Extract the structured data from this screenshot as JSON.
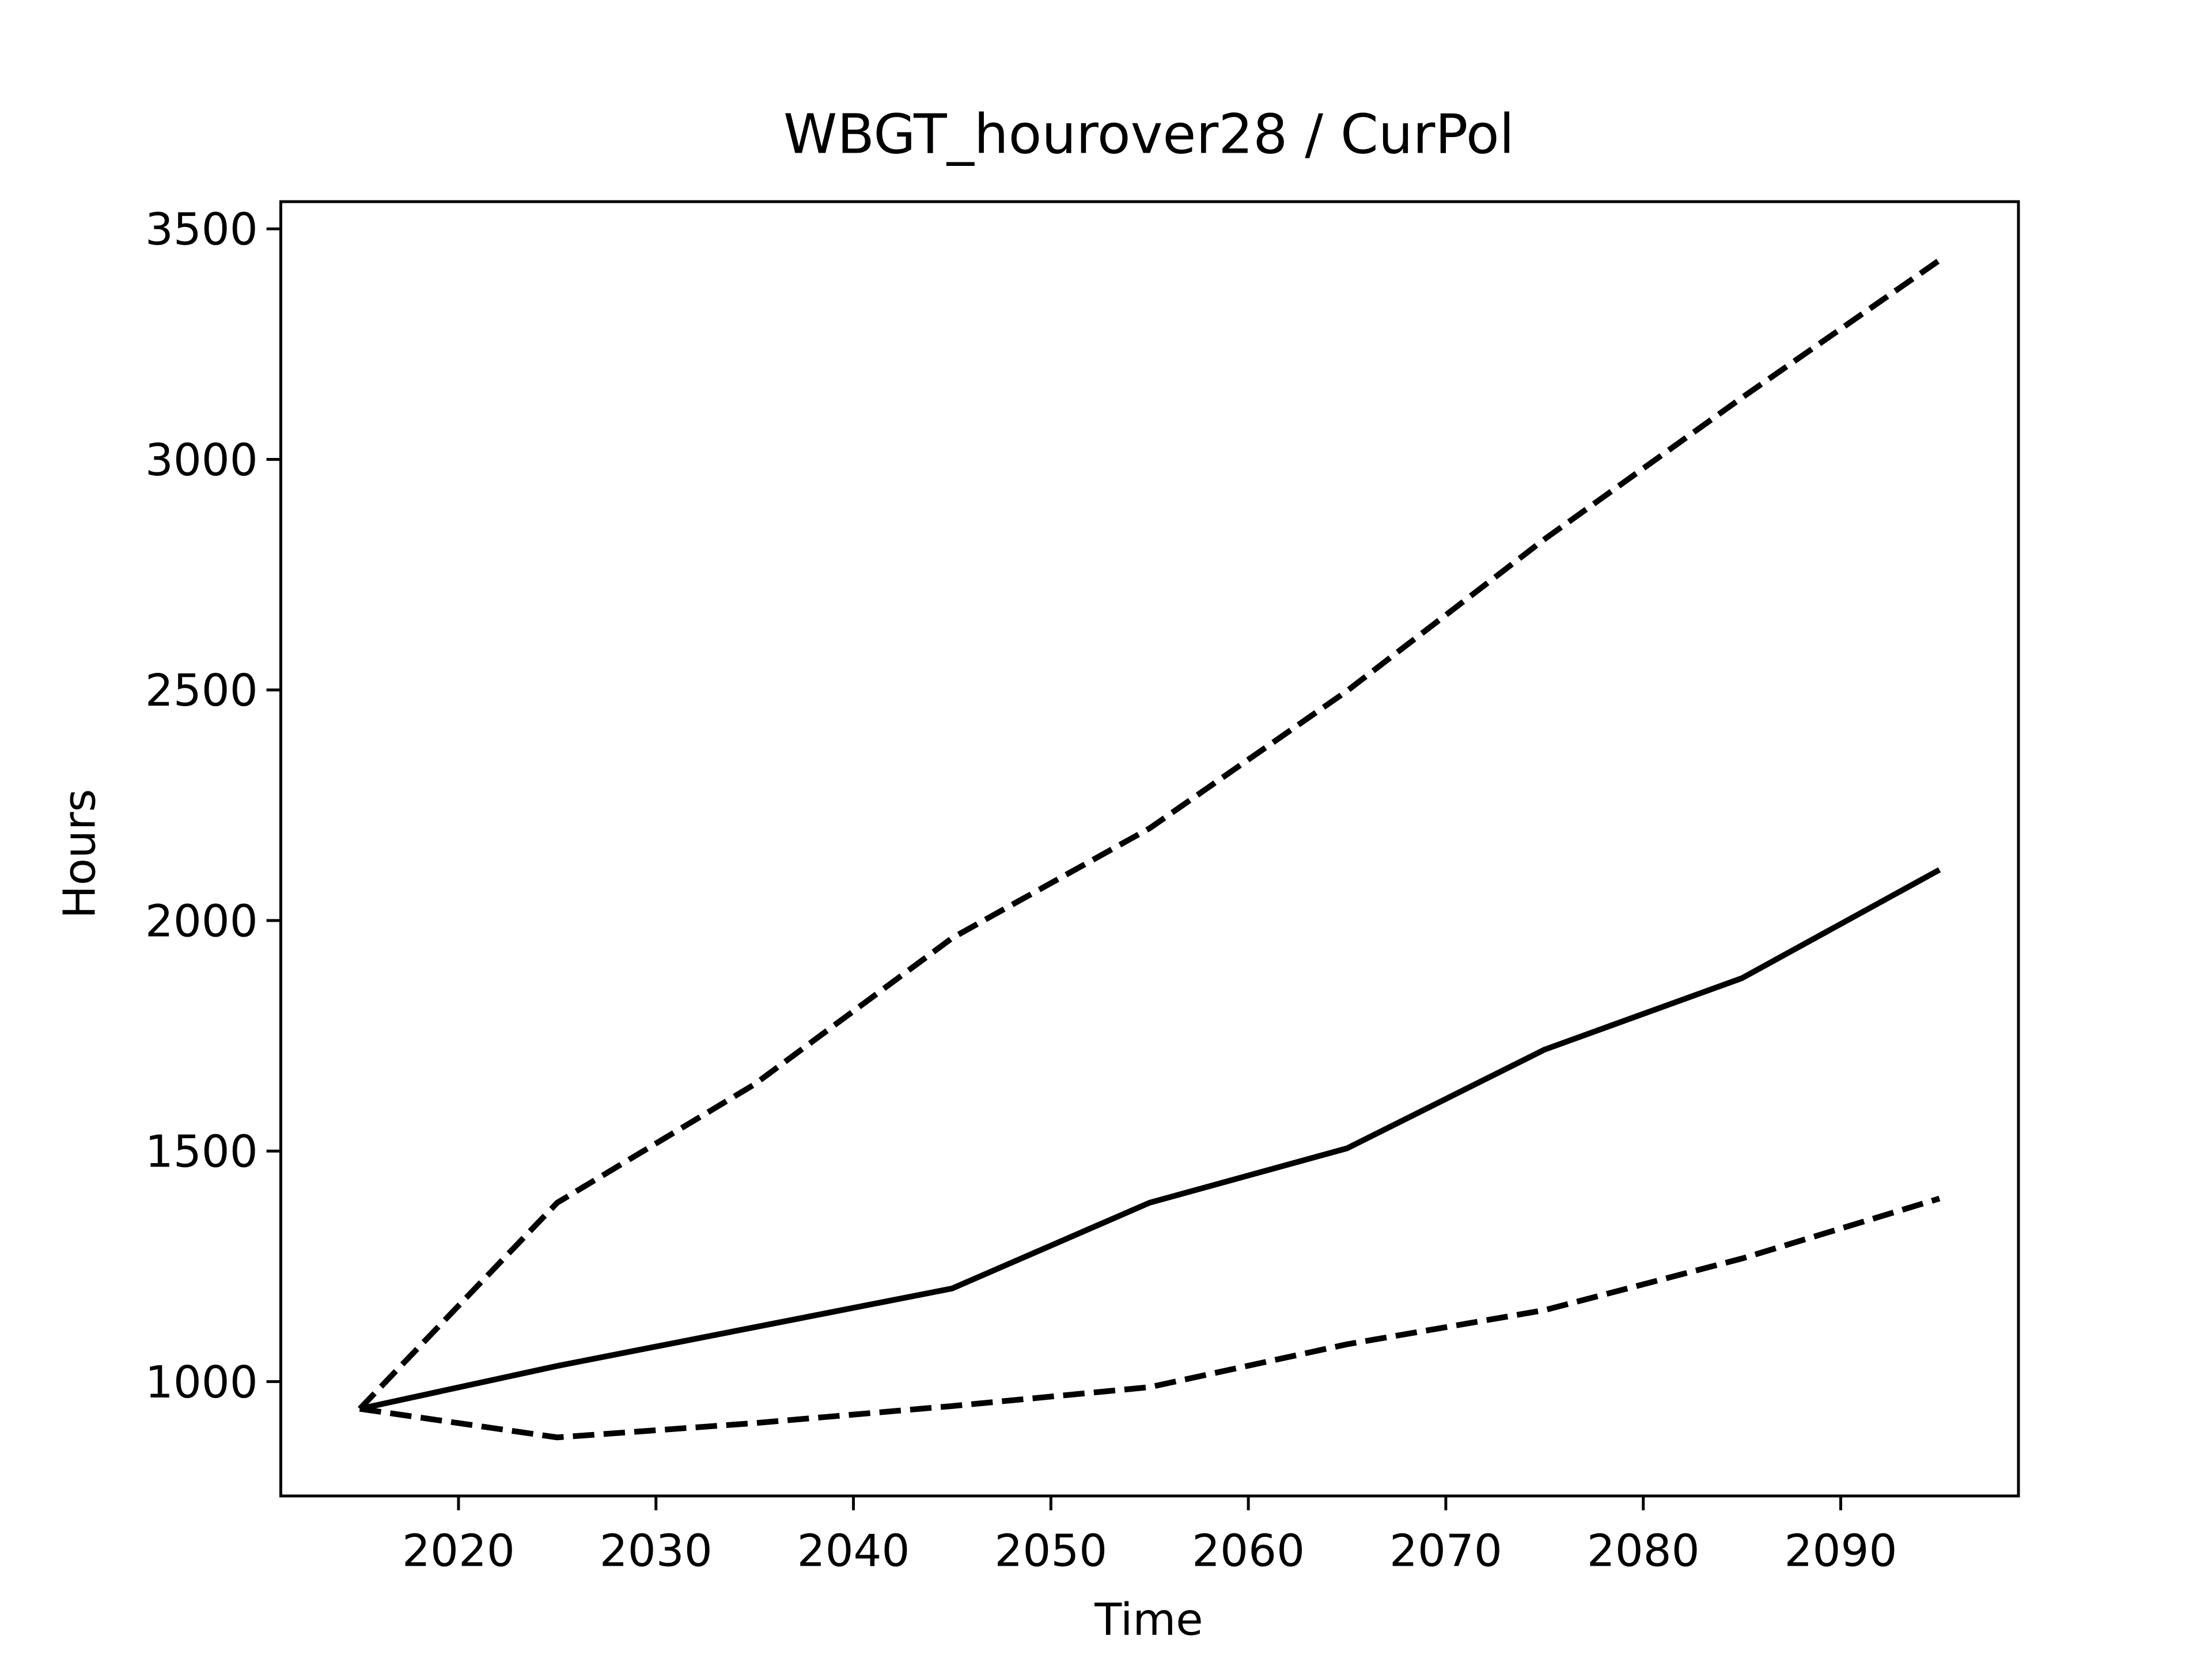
{
  "chart_data": {
    "type": "line",
    "title": "WBGT_hourover28 / CurPol",
    "x_label": "Time",
    "y_label": "Hours",
    "x": [
      2015,
      2025,
      2035,
      2045,
      2055,
      2065,
      2075,
      2085,
      2095
    ],
    "series": [
      {
        "color": "#000000",
        "linestyle": "dashed",
        "values": [
          941,
          879,
          910,
          947,
          988,
          1081,
          1155,
          1267,
          1397
        ]
      },
      {
        "color": "#000000",
        "linestyle": "solid",
        "values": [
          941,
          1034,
          1118,
          1202,
          1388,
          1506,
          1720,
          1875,
          2110
        ]
      },
      {
        "color": "#000000",
        "linestyle": "dashed",
        "values": [
          941,
          1388,
          1645,
          1962,
          2200,
          2498,
          2827,
          3134,
          3432
        ]
      }
    ],
    "xlim": [
      2011,
      2099
    ],
    "ylim": [
      752,
      3559
    ],
    "xticks": [
      2020,
      2030,
      2040,
      2050,
      2060,
      2070,
      2080,
      2090
    ],
    "yticks": [
      1000,
      1500,
      2000,
      2500,
      3000,
      3500
    ],
    "grid": false
  }
}
